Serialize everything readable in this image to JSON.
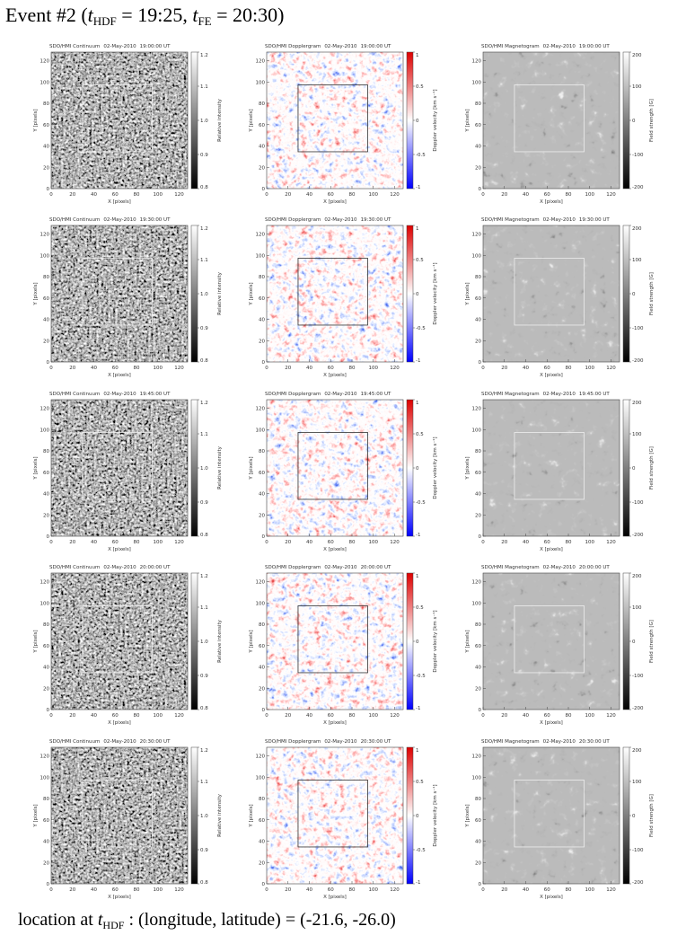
{
  "title": {
    "prefix": "Event #2 (",
    "t1": "t",
    "sub1": "HDF",
    "mid": " = 19:25, ",
    "t2": "t",
    "sub2": "FE",
    "end": " = 20:30)"
  },
  "footer": {
    "prefix": "location at ",
    "t": "t",
    "sub": "HDF",
    "end": " : (longitude, latitude) = (-21.6, -26.0)"
  },
  "date": "02-May-2010",
  "times": [
    "19:00:00 UT",
    "19:30:00 UT",
    "19:45:00 UT",
    "20:00:00 UT",
    "20:30:00 UT"
  ],
  "axes": {
    "xlabel": "X [pixels]",
    "ylabel": "Y [pixels]",
    "xlim": [
      0,
      128
    ],
    "ylim": [
      0,
      128
    ],
    "xticks": [
      0,
      20,
      40,
      60,
      80,
      100,
      120
    ],
    "yticks": [
      0,
      20,
      40,
      60,
      80,
      100,
      120
    ]
  },
  "columns": [
    {
      "name": "SDO/HMI Continuum",
      "cbar_label": "Relative intensity",
      "lim": [
        0.8,
        1.2
      ],
      "ticks": [
        0.8,
        0.9,
        {
          "value": 1,
          "label": "1.0"
        },
        1.1,
        1.2
      ]
    },
    {
      "name": "SDO/HMI Dopplergram",
      "cbar_label": "Doppler velocity [km s⁻¹]",
      "lim": [
        -1,
        1
      ],
      "ticks": [
        -1,
        -0.5,
        0,
        0.5,
        1
      ]
    },
    {
      "name": "SDO/HMI Magnetogram",
      "cbar_label": "Field strength [G]",
      "lim": [
        -200,
        200
      ],
      "ticks": [
        -200,
        -100,
        0,
        100,
        200
      ]
    }
  ]
}
